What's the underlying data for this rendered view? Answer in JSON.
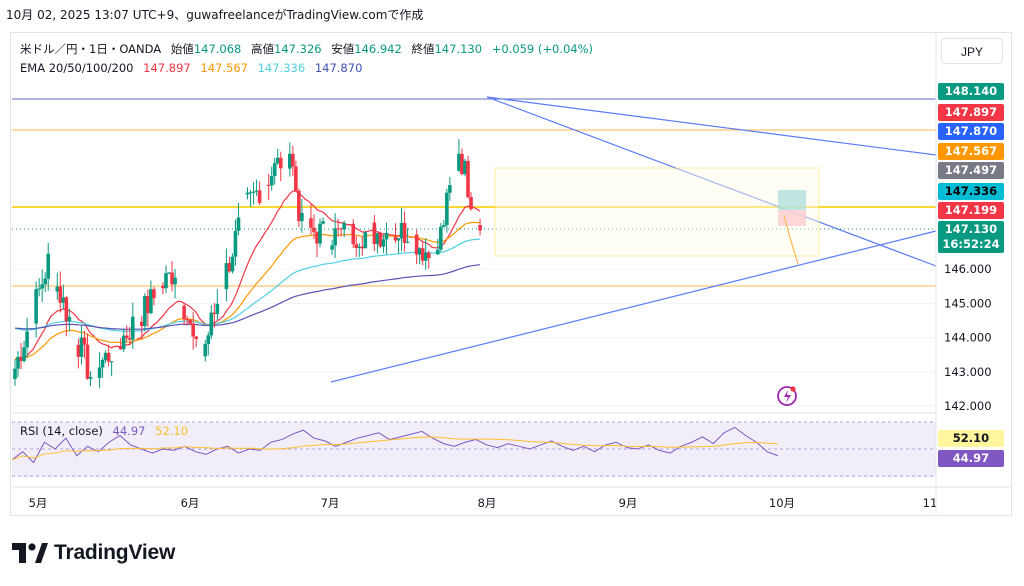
{
  "caption": "10月 02, 2025 13:07 UTC+9、guwafreelanceがTradingView.comで作成",
  "currency_button": "JPY",
  "brand": {
    "logo_text": "TradingView",
    "accent": "#131722"
  },
  "legend": {
    "symbol": "米ドル／円・1日・OANDA",
    "open_label": "始値",
    "open": "147.068",
    "high_label": "高値",
    "high": "147.326",
    "low_label": "安値",
    "low": "146.942",
    "close_label": "終値",
    "close": "147.130",
    "change": "+0.059 (+0.04%)",
    "ema_label": "EMA 20/50/100/200",
    "ema20": "147.897",
    "ema50": "147.567",
    "ema100": "147.336",
    "ema200": "147.870"
  },
  "rsi_legend": {
    "label": "RSI (14, close)",
    "rsi": "44.97",
    "ma": "52.10"
  },
  "price_labels": [
    {
      "text": "148.140",
      "color": "#089981"
    },
    {
      "text": "147.897",
      "color": "#f23645"
    },
    {
      "text": "147.870",
      "color": "#2962ff"
    },
    {
      "text": "147.567",
      "color": "#ff9800"
    },
    {
      "text": "147.497",
      "color": "#787b86"
    },
    {
      "text": "147.336",
      "color": "#00bcd4"
    },
    {
      "text": "147.199",
      "color": "#f23645"
    },
    {
      "text": "147.130",
      "color": "#089981"
    },
    {
      "text": "16:52:24",
      "color": "#089981"
    }
  ],
  "rsi_labels": [
    {
      "text": "52.10",
      "color": "#fff59d"
    },
    {
      "text": "44.97",
      "color": "#7e57c2"
    }
  ],
  "colors": {
    "up": "#089981",
    "down": "#f23645",
    "ema20": "#f23645",
    "ema50": "#ff9800",
    "ema100": "#4dd0e1",
    "ema200": "#5c51b4",
    "rsi": "#7e57c2",
    "rsi_ma": "#fbc02d"
  },
  "chart_data": {
    "type": "candlestick",
    "title": "米ドル／円・1日・OANDA",
    "y_ticks": [
      "146.000",
      "145.000",
      "144.000",
      "143.000",
      "142.000"
    ],
    "ylim": [
      142.0,
      148.4
    ],
    "x_ticks": [
      "5月",
      "6月",
      "7月",
      "8月",
      "9月",
      "10月",
      "11"
    ],
    "horizontal_levels": [
      148.14,
      147.2,
      145.5
    ],
    "candles_anchor": [
      {
        "date": "05-01",
        "close": 143.1
      },
      {
        "date": "05-12",
        "close": 146.2
      },
      {
        "date": "05-26",
        "close": 142.9
      },
      {
        "date": "06-05",
        "close": 143.9
      },
      {
        "date": "06-23",
        "close": 146.0
      },
      {
        "date": "07-01",
        "close": 143.2
      },
      {
        "date": "07-16",
        "close": 147.8
      },
      {
        "date": "07-31",
        "close": 149.5
      },
      {
        "date": "08-04",
        "close": 147.2
      },
      {
        "date": "08-13",
        "close": 147.0
      },
      {
        "date": "09-08",
        "close": 147.1
      },
      {
        "date": "09-17",
        "close": 146.2
      },
      {
        "date": "09-25",
        "close": 149.5
      },
      {
        "date": "10-02",
        "close": 147.13
      }
    ],
    "rsi": {
      "label": "RSI (14, close)",
      "latest": 44.97,
      "ma_latest": 52.1,
      "values": [
        42,
        48,
        40,
        55,
        50,
        58,
        45,
        52,
        48,
        55,
        60,
        53,
        50,
        47,
        50,
        49,
        52,
        48,
        46,
        50,
        52,
        47,
        50,
        49,
        55,
        57,
        61,
        64,
        58,
        56,
        52,
        55,
        58,
        60,
        62,
        57,
        59,
        61,
        63,
        58,
        54,
        52,
        55,
        57,
        53,
        51,
        54,
        52,
        50,
        53,
        56,
        52,
        49,
        52,
        48,
        53,
        55,
        51,
        50,
        53,
        49,
        47,
        52,
        55,
        59,
        54,
        62,
        66,
        60,
        55,
        48,
        45
      ]
    }
  }
}
